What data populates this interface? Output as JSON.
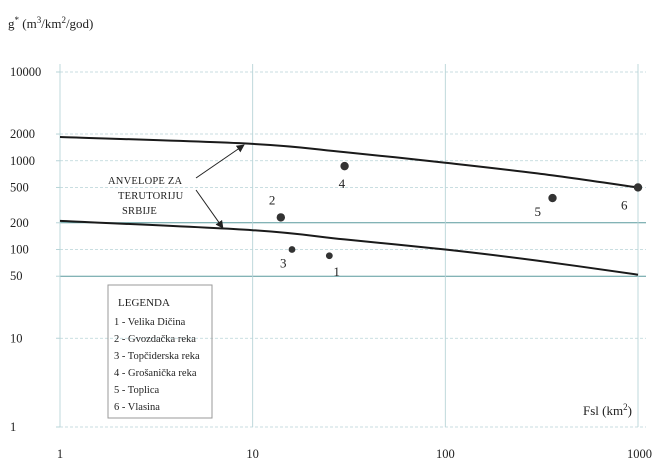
{
  "chart_data": {
    "type": "scatter",
    "x_scale": "log",
    "y_scale": "log",
    "xlim": [
      1,
      1000
    ],
    "ylim": [
      1,
      10000
    ],
    "ylabel": "g* (m3/km2/god)",
    "ylabel_parts": {
      "base": "g",
      "sup1": "*",
      "unit_open": " (m",
      "sup2": "3",
      "unit_mid": "/km",
      "sup3": "2",
      "unit_close": "/god)"
    },
    "xlabel": "Fsl (km2)",
    "xlabel_parts": {
      "base": "Fsl (km",
      "sup": "2",
      "close": ")"
    },
    "x_ticks": [
      1,
      10,
      100,
      1000
    ],
    "x_tick_labels": [
      "1",
      "10",
      "100",
      "1000"
    ],
    "y_ticks": [
      1,
      10,
      50,
      100,
      200,
      500,
      1000,
      2000,
      10000
    ],
    "y_tick_labels": [
      "1",
      "10",
      "50",
      "100",
      "200",
      "500",
      "1000",
      "2000",
      "10000"
    ],
    "grid": true,
    "points": [
      {
        "label": "1",
        "x": 25,
        "y": 85
      },
      {
        "label": "2",
        "x": 14,
        "y": 230
      },
      {
        "label": "3",
        "x": 16,
        "y": 100
      },
      {
        "label": "4",
        "x": 30,
        "y": 870
      },
      {
        "label": "5",
        "x": 360,
        "y": 380
      },
      {
        "label": "6",
        "x": 1000,
        "y": 500
      }
    ],
    "filled_points": [
      "2",
      "4",
      "5",
      "6"
    ],
    "envelopes": [
      {
        "x": [
          1,
          10,
          30,
          100,
          300,
          1000
        ],
        "y": [
          1850,
          1550,
          1250,
          950,
          720,
          500
        ]
      },
      {
        "x": [
          1,
          10,
          30,
          100,
          300,
          1000
        ],
        "y": [
          210,
          165,
          130,
          100,
          75,
          52
        ]
      }
    ],
    "annotation": {
      "lines": [
        "ANVELOPE ZA",
        "TERUTORIJU",
        "SRBIJE"
      ],
      "arrow_targets": [
        {
          "x": 9,
          "y": 1500
        },
        {
          "x": 7,
          "y": 175
        }
      ]
    },
    "legend": {
      "title": "LEGENDA",
      "items": [
        "1 - Velika Dičina",
        "2 - Gvozdačka reka",
        "3 - Topčiderska reka",
        "4 - Grošanička reka",
        "5 - Toplica",
        "6 - Vlasina"
      ]
    },
    "colors": {
      "curve": "#1a1a1a",
      "point": "#333333",
      "grid": "#b8d4d8",
      "hline": "#5a9a9e",
      "text": "#222222"
    }
  }
}
